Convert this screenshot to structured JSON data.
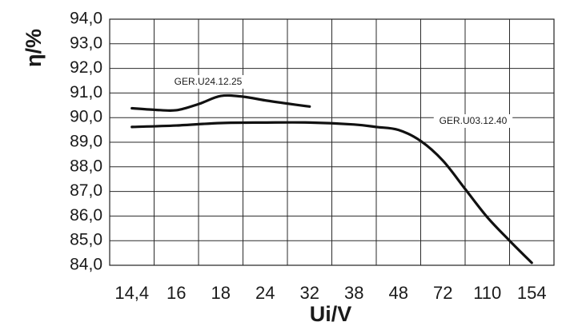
{
  "chart_data": {
    "type": "line",
    "title": "",
    "xlabel": "Ui/V",
    "ylabel": "η/%",
    "x_tick_labels": [
      "14,4",
      "16",
      "18",
      "24",
      "32",
      "38",
      "48",
      "72",
      "110",
      "154"
    ],
    "y_tick_labels": [
      "84,0",
      "85,0",
      "86,0",
      "87,0",
      "88,0",
      "89,0",
      "90,0",
      "91,0",
      "92,0",
      "93,0",
      "94,0"
    ],
    "ylim": [
      84,
      94
    ],
    "x_scale": "categorical (unevenly spaced voltages)",
    "grid": true,
    "series": [
      {
        "name": "GER.U24.12.25",
        "color": "#111111",
        "x_index": [
          0,
          0.5,
          1,
          1.5,
          2,
          2.5,
          3,
          3.5,
          4
        ],
        "values": [
          90.38,
          90.32,
          90.3,
          90.55,
          90.88,
          90.85,
          90.7,
          90.57,
          90.45
        ]
      },
      {
        "name": "GER.U03.12.40",
        "color": "#111111",
        "x_index": [
          0,
          1,
          2,
          3,
          4,
          5,
          5.5,
          6,
          6.5,
          7,
          7.5,
          8,
          8.5,
          9
        ],
        "values": [
          89.62,
          89.68,
          89.78,
          89.8,
          89.8,
          89.72,
          89.62,
          89.5,
          89.05,
          88.25,
          87.1,
          85.95,
          85.0,
          84.1
        ]
      }
    ],
    "annotations": [
      {
        "text": "GER.U24.12.25",
        "series": "GER.U24.12.25"
      },
      {
        "text": "GER.U03.12.40",
        "series": "GER.U03.12.40"
      }
    ]
  }
}
